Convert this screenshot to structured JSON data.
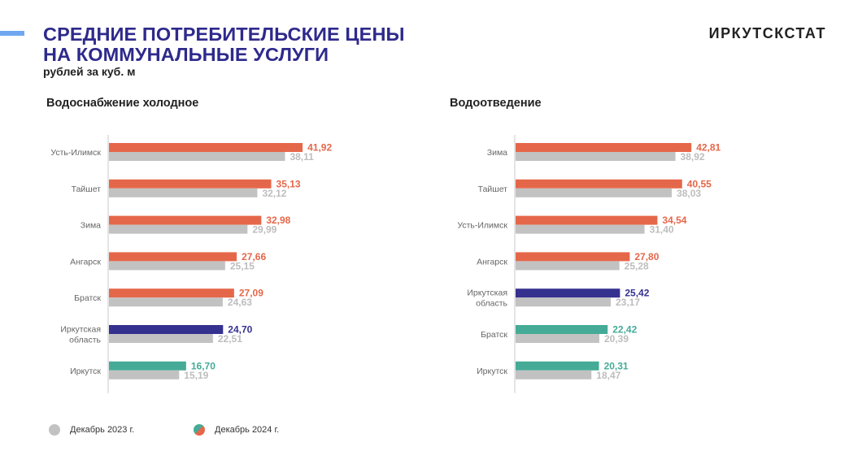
{
  "header": {
    "title_line1": "СРЕДНИЕ ПОТРЕБИТЕЛЬСКИЕ ЦЕНЫ",
    "title_line2": "НА КОММУНАЛЬНЫЕ УСЛУГИ",
    "subtitle": "рублей за куб. м",
    "brand": "ИРКУТСКСТАТ"
  },
  "colors": {
    "accent": "#6fa8f0",
    "title": "#2e2a8c",
    "orange": "#e5674a",
    "navy": "#35318f",
    "teal": "#45ab97",
    "gray": "#c2c2c2",
    "gray_label": "#bdbdbd"
  },
  "legend": {
    "items": [
      {
        "label": "Декабрь 2023 г.",
        "key": "2023"
      },
      {
        "label": "Декабрь 2024 г.",
        "key": "2024"
      }
    ]
  },
  "chart_data": [
    {
      "type": "bar",
      "orientation": "horizontal",
      "title": "Водоснабжение холодное",
      "categories": [
        "Усть-Илимск",
        "Тайшет",
        "Зима",
        "Ангарск",
        "Братск",
        "Иркутская область",
        "Иркутск"
      ],
      "series": [
        {
          "name": "Декабрь 2024 г.",
          "values": [
            41.92,
            35.13,
            32.98,
            27.66,
            27.09,
            24.7,
            16.7
          ],
          "labels": [
            "41,92",
            "35,13",
            "32,98",
            "27,66",
            "27,09",
            "24,70",
            "16,70"
          ],
          "bar_colors": [
            "orange",
            "orange",
            "orange",
            "orange",
            "orange",
            "navy",
            "teal"
          ]
        },
        {
          "name": "Декабрь 2023 г.",
          "values": [
            38.11,
            32.12,
            29.99,
            25.15,
            24.63,
            22.51,
            15.19
          ],
          "labels": [
            "38,11",
            "32,12",
            "29,99",
            "25,15",
            "24,63",
            "22,51",
            "15,19"
          ]
        }
      ],
      "xlim": [
        0,
        45
      ],
      "grid": false,
      "legend": "bottom-left"
    },
    {
      "type": "bar",
      "orientation": "horizontal",
      "title": "Водоотведение",
      "categories": [
        "Зима",
        "Тайшет",
        "Усть-Илимск",
        "Ангарск",
        "Иркутская область",
        "Братск",
        "Иркутск"
      ],
      "series": [
        {
          "name": "Декабрь 2024 г.",
          "values": [
            42.81,
            40.55,
            34.54,
            27.8,
            25.42,
            22.42,
            20.31
          ],
          "labels": [
            "42,81",
            "40,55",
            "34,54",
            "27,80",
            "25,42",
            "22,42",
            "20,31"
          ],
          "bar_colors": [
            "orange",
            "orange",
            "orange",
            "orange",
            "navy",
            "teal",
            "teal"
          ]
        },
        {
          "name": "Декабрь 2023 г.",
          "values": [
            38.92,
            38.03,
            31.4,
            25.28,
            23.17,
            20.39,
            18.47
          ],
          "labels": [
            "38,92",
            "38,03",
            "31,40",
            "25,28",
            "23,17",
            "20,39",
            "18,47"
          ]
        }
      ],
      "xlim": [
        0,
        50
      ],
      "grid": false,
      "legend": "bottom-left"
    }
  ]
}
